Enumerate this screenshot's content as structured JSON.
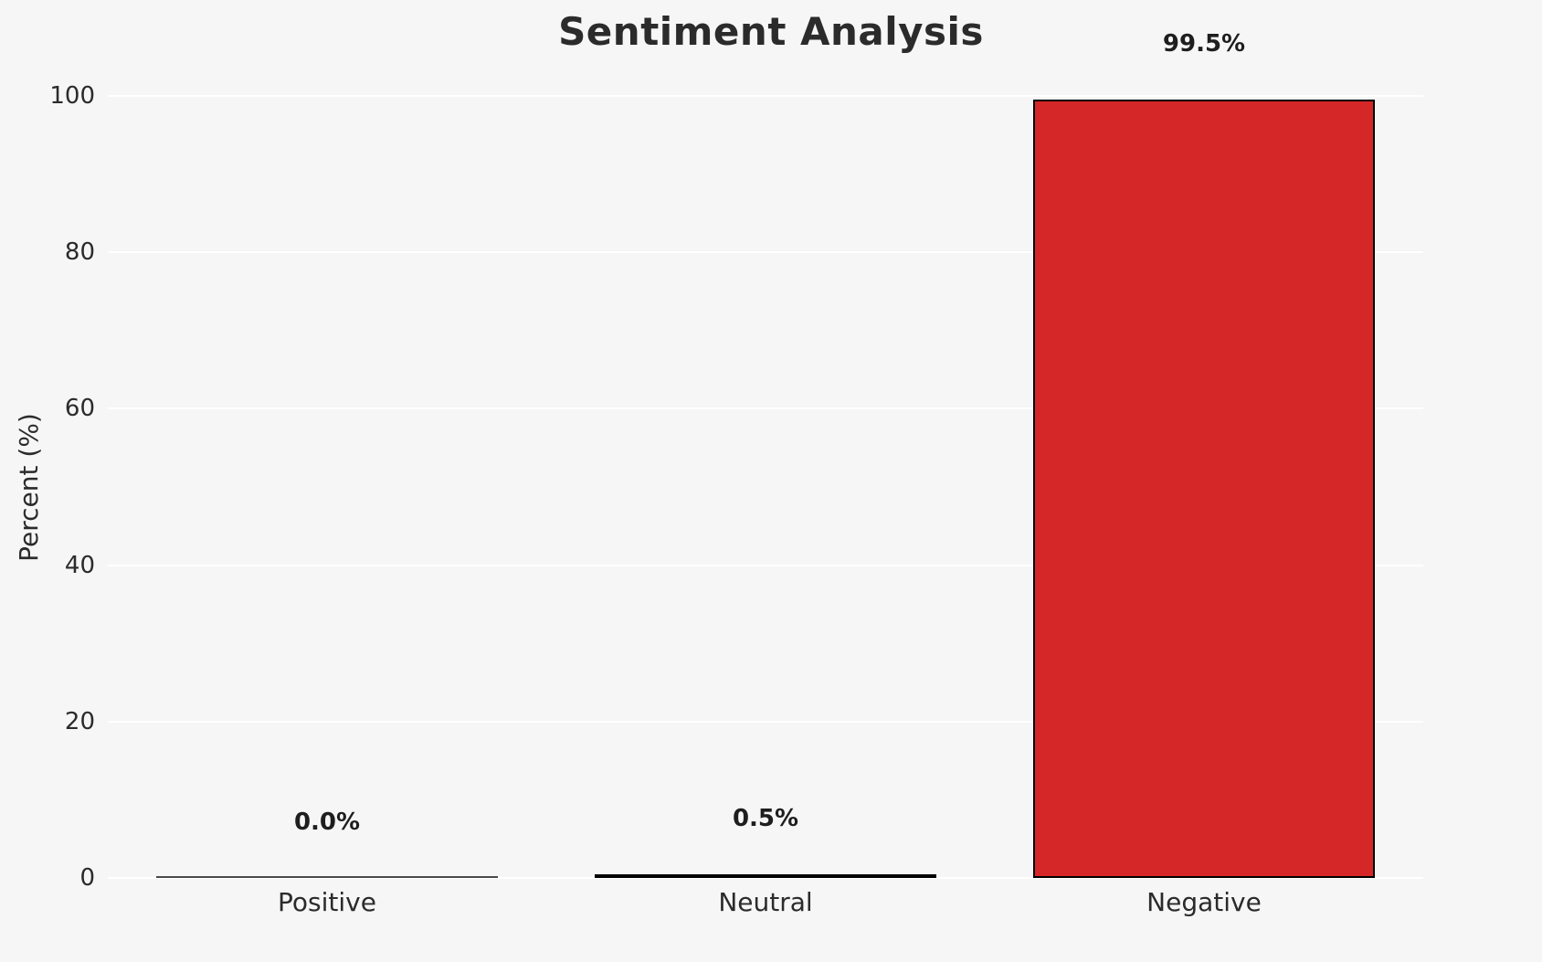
{
  "chart_data": {
    "type": "bar",
    "title": "Sentiment Analysis",
    "xlabel": "",
    "ylabel": "Percent (%)",
    "categories": [
      "Positive",
      "Neutral",
      "Negative"
    ],
    "values": [
      0.0,
      0.5,
      99.5
    ],
    "value_labels": [
      "0.0%",
      "0.5%",
      "99.5%"
    ],
    "bar_colors": [
      "#f6f6f7",
      "#ffee33",
      "#d62728"
    ],
    "bar_edge_color": "#000000",
    "ylim": [
      0,
      100
    ],
    "yticks": [
      0,
      20,
      40,
      60,
      80,
      100
    ],
    "grid": true,
    "grid_color": "#ffffff",
    "background_color": "#f6f6f7",
    "legend": null
  }
}
